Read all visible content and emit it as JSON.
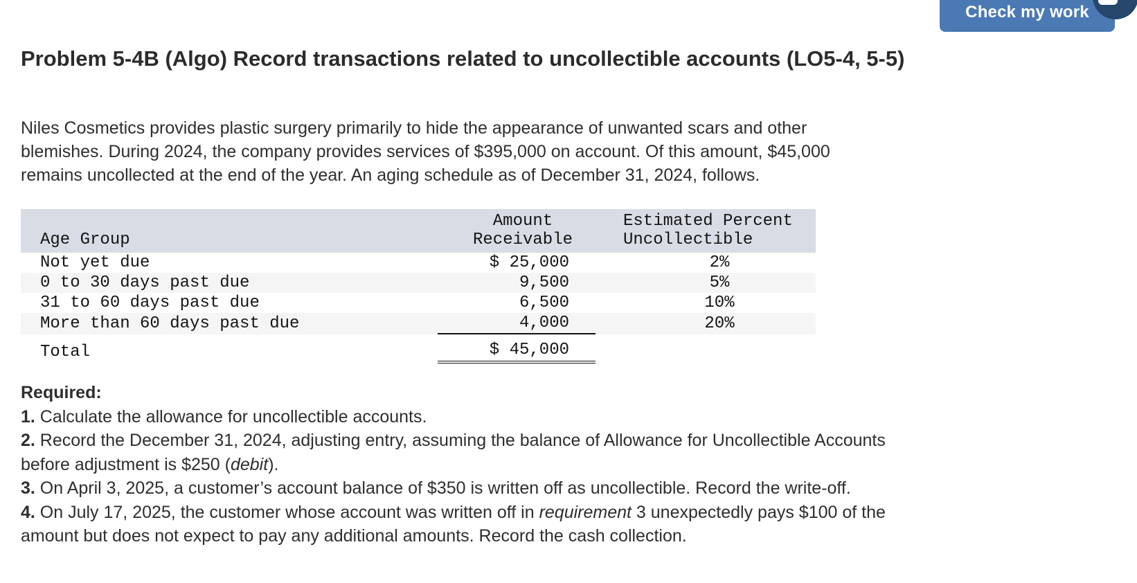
{
  "header": {
    "check_button": "Check my work"
  },
  "title": "Problem 5-4B (Algo) Record transactions related to uncollectible accounts (LO5-4, 5-5)",
  "intro_lines": [
    "Niles Cosmetics provides plastic surgery primarily to hide the appearance of unwanted scars and other",
    "blemishes. During 2024, the company provides services of $395,000 on account. Of this amount, $45,000",
    "remains uncollected at the end of the year. An aging schedule as of December 31, 2024, follows."
  ],
  "aging_table": {
    "col_headers": {
      "age_group": "Age Group",
      "amount": [
        "Amount",
        "Receivable"
      ],
      "percent": [
        "Estimated Percent",
        "Uncollectible"
      ]
    },
    "rows": [
      {
        "age_group": "Not yet due",
        "amount": "$ 25,000",
        "percent": "2%",
        "shaded": false
      },
      {
        "age_group": "0 to 30 days past due",
        "amount": "9,500",
        "percent": "5%",
        "shaded": true
      },
      {
        "age_group": "31 to 60 days past due",
        "amount": "6,500",
        "percent": "10%",
        "shaded": false
      },
      {
        "age_group": "More than 60 days past due",
        "amount": "4,000",
        "percent": "20%",
        "shaded": true,
        "rule": "single"
      }
    ],
    "total_row": {
      "label": "Total",
      "amount": "$ 45,000",
      "rule": "double"
    }
  },
  "required": {
    "heading": "Required:",
    "items": [
      {
        "num": "1.",
        "lines": [
          [
            {
              "t": "Calculate the allowance for uncollectible accounts."
            }
          ]
        ]
      },
      {
        "num": "2.",
        "lines": [
          [
            {
              "t": "Record the December 31, 2024, adjusting entry, assuming the balance of Allowance for Uncollectible Accounts"
            }
          ],
          [
            {
              "t": "before adjustment is $250 ("
            },
            {
              "t": "debit",
              "i": true
            },
            {
              "t": ")."
            }
          ]
        ]
      },
      {
        "num": "3.",
        "lines": [
          [
            {
              "t": "On April 3, 2025, a customer’s account balance of $350 is written off as uncollectible. Record the write-off."
            }
          ]
        ]
      },
      {
        "num": "4.",
        "lines": [
          [
            {
              "t": "On July 17, 2025, the customer whose account was written off in "
            },
            {
              "t": "requirement",
              "i": true
            },
            {
              "t": " 3 unexpectedly pays $100 of the"
            }
          ],
          [
            {
              "t": "amount but does not expect to pay any additional amounts. Record the cash collection."
            }
          ]
        ]
      }
    ]
  },
  "colors": {
    "button_blue": "#4a79b4",
    "badge_navy": "#26476b",
    "table_header_bg": "#d8dce4",
    "row_stripe_bg": "#f5f5f6",
    "rule_black": "#111111"
  }
}
